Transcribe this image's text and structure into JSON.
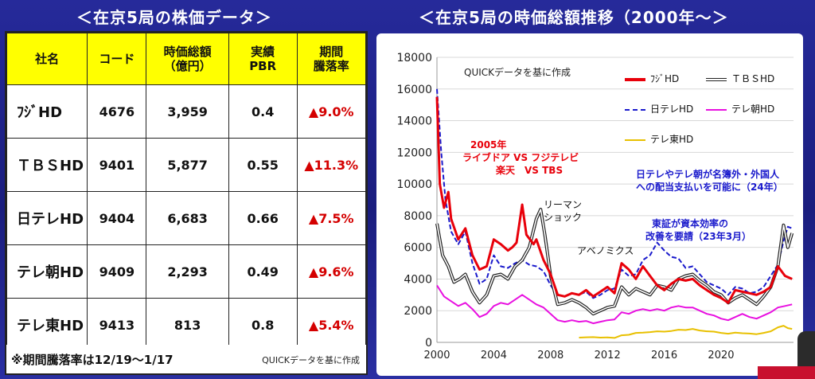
{
  "titles": {
    "left": "＜在京5局の株価データ＞",
    "right": "＜在京5局の時価総額推移（2000年～＞"
  },
  "table": {
    "headers": [
      "社名",
      "コード",
      "時価総額\n（億円）",
      "実績\nPBR",
      "期間\n騰落率"
    ],
    "rows": [
      {
        "name": "ﾌｼﾞHD",
        "code": "4676",
        "cap": "3,959",
        "pbr": "0.4",
        "chg": "▲9.0%"
      },
      {
        "name": "ＴＢＳHD",
        "code": "9401",
        "cap": "5,877",
        "pbr": "0.55",
        "chg": "▲11.3%"
      },
      {
        "name": "日テレHD",
        "code": "9404",
        "cap": "6,683",
        "pbr": "0.66",
        "chg": "▲7.5%"
      },
      {
        "name": "テレ朝HD",
        "code": "9409",
        "cap": "2,293",
        "pbr": "0.49",
        "chg": "▲9.6%"
      },
      {
        "name": "テレ東HD",
        "code": "9413",
        "cap": "813",
        "pbr": "0.8",
        "chg": "▲5.4%"
      }
    ],
    "note": "※期間騰落率は12/19～1/17",
    "source": "QUICKデータを基に作成"
  },
  "chart_data": {
    "type": "line",
    "source_note": "QUICKデータを基に作成",
    "ylim": [
      0,
      18000
    ],
    "yticks": [
      0,
      2000,
      4000,
      6000,
      8000,
      10000,
      12000,
      14000,
      16000,
      18000
    ],
    "xlim": [
      2000,
      2025.1
    ],
    "xticks": [
      2000,
      2004,
      2008,
      2012,
      2016,
      2020
    ],
    "xtick_labels": [
      "2000",
      "2004",
      "2008",
      "2012",
      "2016",
      "2020"
    ],
    "legend_placement": "top-right",
    "annotations": {
      "livedoor": [
        "2005年",
        "ライブドア VS フジテレビ",
        "楽天　VS TBS"
      ],
      "lehman": [
        "リーマン",
        "ショック"
      ],
      "abenomics": "アベノミクス",
      "tse": [
        "東証が資本効率の",
        "改善を要請（23年3月）"
      ],
      "foreign": [
        "日テレやテレ朝が名簿外・外国人",
        "への配当支払いを可能に（24年）"
      ]
    },
    "series": [
      {
        "name": "ﾌｼﾞHD",
        "color": "#e8000a",
        "style": "solid",
        "x": [
          2000.0,
          2000.2,
          2000.5,
          2000.8,
          2001.0,
          2001.5,
          2002.0,
          2002.5,
          2003.0,
          2003.5,
          2004.0,
          2004.5,
          2005.0,
          2005.3,
          2005.6,
          2006.0,
          2006.3,
          2006.8,
          2007.0,
          2007.5,
          2008.0,
          2008.5,
          2009.0,
          2009.5,
          2010.0,
          2010.5,
          2011.0,
          2011.5,
          2012.0,
          2012.5,
          2013.0,
          2013.5,
          2014.0,
          2014.5,
          2015.0,
          2015.5,
          2016.0,
          2016.5,
          2017.0,
          2017.5,
          2018.0,
          2018.5,
          2019.0,
          2019.5,
          2020.0,
          2020.5,
          2021.0,
          2021.5,
          2022.0,
          2022.5,
          2023.0,
          2023.5,
          2024.0,
          2024.5,
          2025.0
        ],
        "y": [
          15500,
          10000,
          8500,
          9500,
          7800,
          6500,
          7200,
          5500,
          4600,
          4800,
          6500,
          6200,
          5800,
          6000,
          6300,
          8700,
          6800,
          6200,
          6500,
          5200,
          4300,
          3000,
          2900,
          3100,
          3000,
          3300,
          2900,
          3200,
          3500,
          3100,
          5000,
          4600,
          4000,
          4800,
          4200,
          3600,
          3300,
          3700,
          4000,
          3900,
          4000,
          3600,
          3300,
          3000,
          2800,
          2500,
          3300,
          3200,
          3100,
          3000,
          3200,
          3500,
          4800,
          4200,
          4000
        ]
      },
      {
        "name": "ＴＢＳHD",
        "color": "#222222",
        "style": "double",
        "x": [
          2000.0,
          2000.4,
          2000.8,
          2001.2,
          2001.6,
          2002.0,
          2002.5,
          2003.0,
          2003.5,
          2004.0,
          2004.5,
          2005.0,
          2005.5,
          2006.0,
          2006.5,
          2007.0,
          2007.3,
          2007.6,
          2008.0,
          2008.5,
          2009.0,
          2009.5,
          2010.0,
          2010.5,
          2011.0,
          2011.5,
          2012.0,
          2012.5,
          2013.0,
          2013.5,
          2014.0,
          2014.5,
          2015.0,
          2015.5,
          2016.0,
          2016.5,
          2017.0,
          2017.5,
          2018.0,
          2018.5,
          2019.0,
          2019.5,
          2020.0,
          2020.5,
          2021.0,
          2021.5,
          2022.0,
          2022.5,
          2023.0,
          2023.5,
          2024.0,
          2024.4,
          2024.7,
          2025.0
        ],
        "y": [
          7500,
          5500,
          4800,
          3800,
          4000,
          4300,
          3200,
          2500,
          3000,
          4200,
          4300,
          4000,
          4800,
          5200,
          6000,
          7800,
          8400,
          6800,
          4200,
          2400,
          2500,
          2700,
          2500,
          2200,
          1800,
          2000,
          2200,
          2300,
          3500,
          3000,
          3400,
          3200,
          3000,
          3600,
          3500,
          3300,
          4000,
          4200,
          4300,
          3900,
          3600,
          3200,
          3000,
          2500,
          2800,
          3000,
          2700,
          2400,
          2900,
          3500,
          4800,
          7400,
          6000,
          6900
        ]
      },
      {
        "name": "日テレHD",
        "color": "#1a1acc",
        "style": "dashed",
        "x": [
          2000.0,
          2000.3,
          2000.6,
          2001.0,
          2001.5,
          2002.0,
          2002.5,
          2003.0,
          2003.5,
          2004.0,
          2004.5,
          2005.0,
          2005.5,
          2006.0,
          2006.5,
          2007.0,
          2007.5,
          2008.0,
          2008.5,
          2009.0,
          2009.5,
          2010.0,
          2010.5,
          2011.0,
          2011.5,
          2012.0,
          2012.5,
          2013.0,
          2013.5,
          2014.0,
          2014.5,
          2015.0,
          2015.5,
          2016.0,
          2016.5,
          2017.0,
          2017.5,
          2018.0,
          2018.5,
          2019.0,
          2019.5,
          2020.0,
          2020.5,
          2021.0,
          2021.5,
          2022.0,
          2022.5,
          2023.0,
          2023.5,
          2024.0,
          2024.4,
          2024.7,
          2025.0
        ],
        "y": [
          16000,
          12000,
          9000,
          7000,
          6200,
          7000,
          5000,
          3700,
          4000,
          5500,
          4800,
          4700,
          5000,
          5200,
          4900,
          4800,
          4500,
          3600,
          3000,
          2900,
          3100,
          3000,
          3200,
          2800,
          3000,
          3300,
          3400,
          4600,
          4200,
          4300,
          5200,
          5500,
          6300,
          5800,
          5400,
          5300,
          4700,
          4800,
          4300,
          3800,
          3600,
          3400,
          3000,
          3500,
          3400,
          3100,
          3200,
          3500,
          4200,
          4900,
          6400,
          7300,
          7200
        ]
      },
      {
        "name": "テレ朝HD",
        "color": "#e810e0",
        "style": "solid",
        "x": [
          2000.0,
          2000.5,
          2001.0,
          2001.5,
          2002.0,
          2002.5,
          2003.0,
          2003.5,
          2004.0,
          2004.5,
          2005.0,
          2005.5,
          2006.0,
          2006.5,
          2007.0,
          2007.5,
          2008.0,
          2008.5,
          2009.0,
          2009.5,
          2010.0,
          2010.5,
          2011.0,
          2011.5,
          2012.0,
          2012.5,
          2013.0,
          2013.5,
          2014.0,
          2014.5,
          2015.0,
          2015.5,
          2016.0,
          2016.5,
          2017.0,
          2017.5,
          2018.0,
          2018.5,
          2019.0,
          2019.5,
          2020.0,
          2020.5,
          2021.0,
          2021.5,
          2022.0,
          2022.5,
          2023.0,
          2023.5,
          2024.0,
          2024.5,
          2025.0
        ],
        "y": [
          3600,
          2900,
          2600,
          2300,
          2500,
          2100,
          1600,
          1800,
          2300,
          2500,
          2400,
          2700,
          3000,
          2700,
          2400,
          2200,
          1800,
          1400,
          1300,
          1400,
          1300,
          1350,
          1200,
          1300,
          1400,
          1450,
          1900,
          1800,
          2000,
          2100,
          2000,
          2100,
          2000,
          2200,
          2300,
          2200,
          2200,
          2000,
          1800,
          1700,
          1500,
          1400,
          1600,
          1800,
          1600,
          1500,
          1700,
          1900,
          2200,
          2300,
          2400
        ]
      },
      {
        "name": "テレ東HD",
        "color": "#e8c000",
        "style": "solid",
        "x": [
          2010.0,
          2010.5,
          2011.0,
          2011.5,
          2012.0,
          2012.5,
          2013.0,
          2013.5,
          2014.0,
          2014.5,
          2015.0,
          2015.5,
          2016.0,
          2016.5,
          2017.0,
          2017.5,
          2018.0,
          2018.5,
          2019.0,
          2019.5,
          2020.0,
          2020.5,
          2021.0,
          2021.5,
          2022.0,
          2022.5,
          2023.0,
          2023.5,
          2024.0,
          2024.4,
          2024.7,
          2025.0
        ],
        "y": [
          300,
          320,
          330,
          300,
          310,
          280,
          450,
          480,
          600,
          620,
          650,
          700,
          680,
          720,
          800,
          780,
          850,
          750,
          700,
          680,
          600,
          550,
          620,
          580,
          560,
          520,
          600,
          700,
          950,
          1050,
          900,
          850
        ]
      }
    ]
  }
}
